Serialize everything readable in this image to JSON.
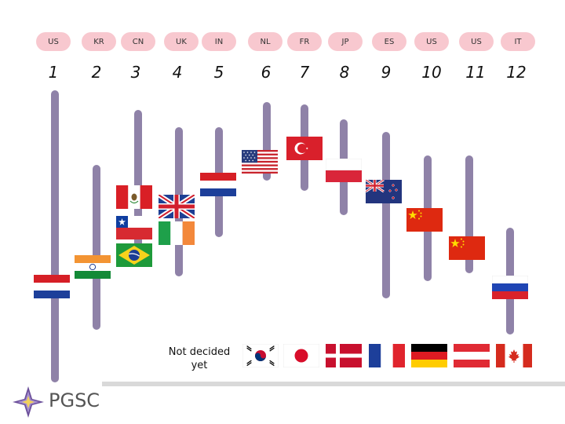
{
  "columns": [
    {
      "code": "US",
      "number": "1"
    },
    {
      "code": "KR",
      "number": "2"
    },
    {
      "code": "CN",
      "number": "3"
    },
    {
      "code": "UK",
      "number": "4"
    },
    {
      "code": "IN",
      "number": "5"
    },
    {
      "code": "NL",
      "number": "6"
    },
    {
      "code": "FR",
      "number": "7"
    },
    {
      "code": "JP",
      "number": "8"
    },
    {
      "code": "ES",
      "number": "9"
    },
    {
      "code": "US",
      "number": "10"
    },
    {
      "code": "US",
      "number": "11"
    },
    {
      "code": "IT",
      "number": "12"
    }
  ],
  "not_decided": {
    "label_line1": "Not decided",
    "label_line2": "yet"
  },
  "logo": {
    "text": "PGSC"
  },
  "colors": {
    "pill": "#f8c8cf",
    "pole": "#8f82a8"
  },
  "flag_icons": [
    "netherlands-flag-icon",
    "india-flag-icon",
    "peru-flag-icon",
    "chile-flag-icon",
    "brazil-flag-icon",
    "uk-flag-icon",
    "ireland-flag-icon",
    "netherlands-flag-icon",
    "usa-flag-icon",
    "turkey-flag-icon",
    "poland-flag-icon",
    "new-zealand-flag-icon",
    "china-flag-icon",
    "china-flag-icon",
    "russia-flag-icon",
    "south-korea-flag-icon",
    "japan-flag-icon",
    "denmark-flag-icon",
    "france-flag-icon",
    "germany-flag-icon",
    "austria-flag-icon",
    "canada-flag-icon"
  ]
}
